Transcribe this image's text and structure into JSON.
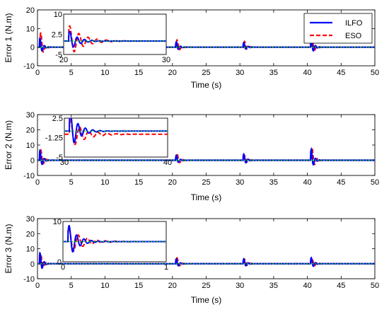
{
  "colors": {
    "ilfo": "#0000ff",
    "eso": "#ff0000",
    "ref": "#00cc00",
    "ref2": "#cccc00"
  },
  "legend": {
    "items": [
      "ILFO",
      "ESO"
    ],
    "placement": "top-right of first subplot"
  },
  "chart_data": [
    {
      "type": "line",
      "ylabel": "Error 1 (N.m)",
      "xlabel": "Time (s)",
      "xlim": [
        0,
        50
      ],
      "ylim": [
        -10,
        20
      ],
      "xticks": [
        0,
        5,
        10,
        15,
        20,
        25,
        30,
        35,
        40,
        45,
        50
      ],
      "yticks": [
        -10,
        0,
        10,
        20
      ],
      "events": [
        {
          "t": 0.3,
          "ilfo_amp": 6,
          "eso_amp": 10
        },
        {
          "t": 20.5,
          "ilfo_amp": 3.5,
          "eso_amp": 5
        },
        {
          "t": 30.5,
          "ilfo_amp": 3,
          "eso_amp": 4
        },
        {
          "t": 40.5,
          "ilfo_amp": 6,
          "eso_amp": 6
        }
      ],
      "series": [
        {
          "name": "ILFO",
          "style": "solid"
        },
        {
          "name": "ESO",
          "style": "dashed"
        }
      ],
      "inset": {
        "xlim": [
          20,
          30
        ],
        "ylim": [
          -5,
          10
        ],
        "xticks": [
          "20",
          "30"
        ],
        "yticks": [
          "10",
          "2.5",
          "-5"
        ],
        "event_t": 20.5,
        "ilfo_amp": 4,
        "eso_amp": 6
      }
    },
    {
      "type": "line",
      "ylabel": "Error 2 (N.m)",
      "xlabel": "Time (s)",
      "xlim": [
        0,
        50
      ],
      "ylim": [
        -10,
        30
      ],
      "xticks": [
        0,
        5,
        10,
        15,
        20,
        25,
        30,
        35,
        40,
        45,
        50
      ],
      "yticks": [
        -10,
        0,
        10,
        20,
        30
      ],
      "events": [
        {
          "t": 0.3,
          "ilfo_amp": 8,
          "eso_amp": 9
        },
        {
          "t": 20.5,
          "ilfo_amp": 4,
          "eso_amp": 6
        },
        {
          "t": 30.5,
          "ilfo_amp": 5,
          "eso_amp": 4
        },
        {
          "t": 40.5,
          "ilfo_amp": 9,
          "eso_amp": 11
        }
      ],
      "series": [
        {
          "name": "ILFO",
          "style": "solid"
        },
        {
          "name": "ESO",
          "style": "dashed"
        }
      ],
      "inset": {
        "xlim": [
          30,
          40
        ],
        "ylim": [
          -5,
          2.5
        ],
        "xticks": [
          "30",
          "40"
        ],
        "yticks": [
          "2.5",
          "-1.25",
          "-5"
        ],
        "event_t": 30.5,
        "ilfo_amp": 4,
        "eso_amp": 3
      }
    },
    {
      "type": "line",
      "ylabel": "Error 3 (N.m)",
      "xlabel": "Time (s)",
      "xlim": [
        0,
        50
      ],
      "ylim": [
        -10,
        30
      ],
      "xticks": [
        0,
        5,
        10,
        15,
        20,
        25,
        30,
        35,
        40,
        45,
        50
      ],
      "yticks": [
        -10,
        0,
        10,
        20,
        30
      ],
      "events": [
        {
          "t": 0.3,
          "ilfo_amp": 9,
          "eso_amp": 8
        },
        {
          "t": 20.5,
          "ilfo_amp": 4,
          "eso_amp": 5
        },
        {
          "t": 30.5,
          "ilfo_amp": 4,
          "eso_amp": 4
        },
        {
          "t": 40.5,
          "ilfo_amp": 5,
          "eso_amp": 5
        }
      ],
      "series": [
        {
          "name": "ILFO",
          "style": "solid"
        },
        {
          "name": "ESO",
          "style": "dashed"
        }
      ],
      "inset": {
        "xlim": [
          0,
          1
        ],
        "ylim": [
          -10,
          10
        ],
        "xticks": [
          "0",
          "1"
        ],
        "yticks": [
          "10",
          "0"
        ],
        "event_t": 0.05,
        "ilfo_amp": 9,
        "eso_amp": 7
      }
    }
  ]
}
